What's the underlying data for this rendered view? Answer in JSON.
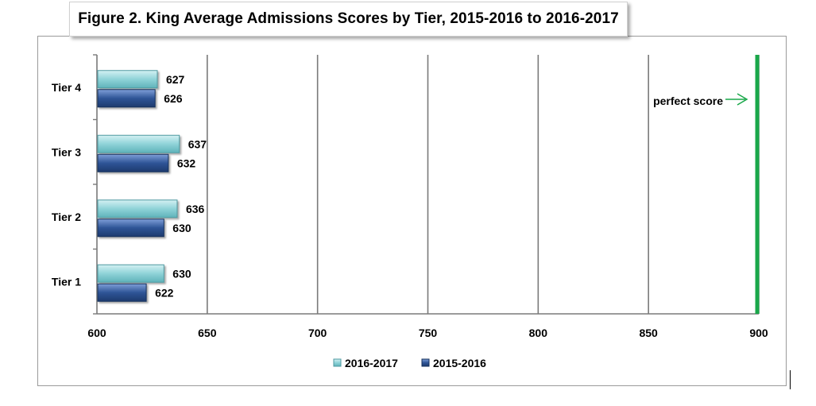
{
  "chart_data": {
    "type": "bar",
    "orientation": "horizontal",
    "title": "Figure 2. King Average Admissions Scores by Tier, 2015-2016 to 2016-2017",
    "categories": [
      "Tier 1",
      "Tier 2",
      "Tier 3",
      "Tier 4"
    ],
    "series": [
      {
        "name": "2016-2017",
        "values": [
          630,
          636,
          637,
          627
        ],
        "color": "#8fd3d8"
      },
      {
        "name": "2015-2016",
        "values": [
          622,
          630,
          632,
          626
        ],
        "color": "#2f5597"
      }
    ],
    "xlim": [
      600,
      900
    ],
    "xticks": [
      600,
      650,
      700,
      750,
      800,
      850,
      900
    ],
    "grid": "vertical",
    "legend": "bottom",
    "reference_line": {
      "value": 900,
      "label": "perfect score",
      "color": "#1aa84a"
    }
  }
}
